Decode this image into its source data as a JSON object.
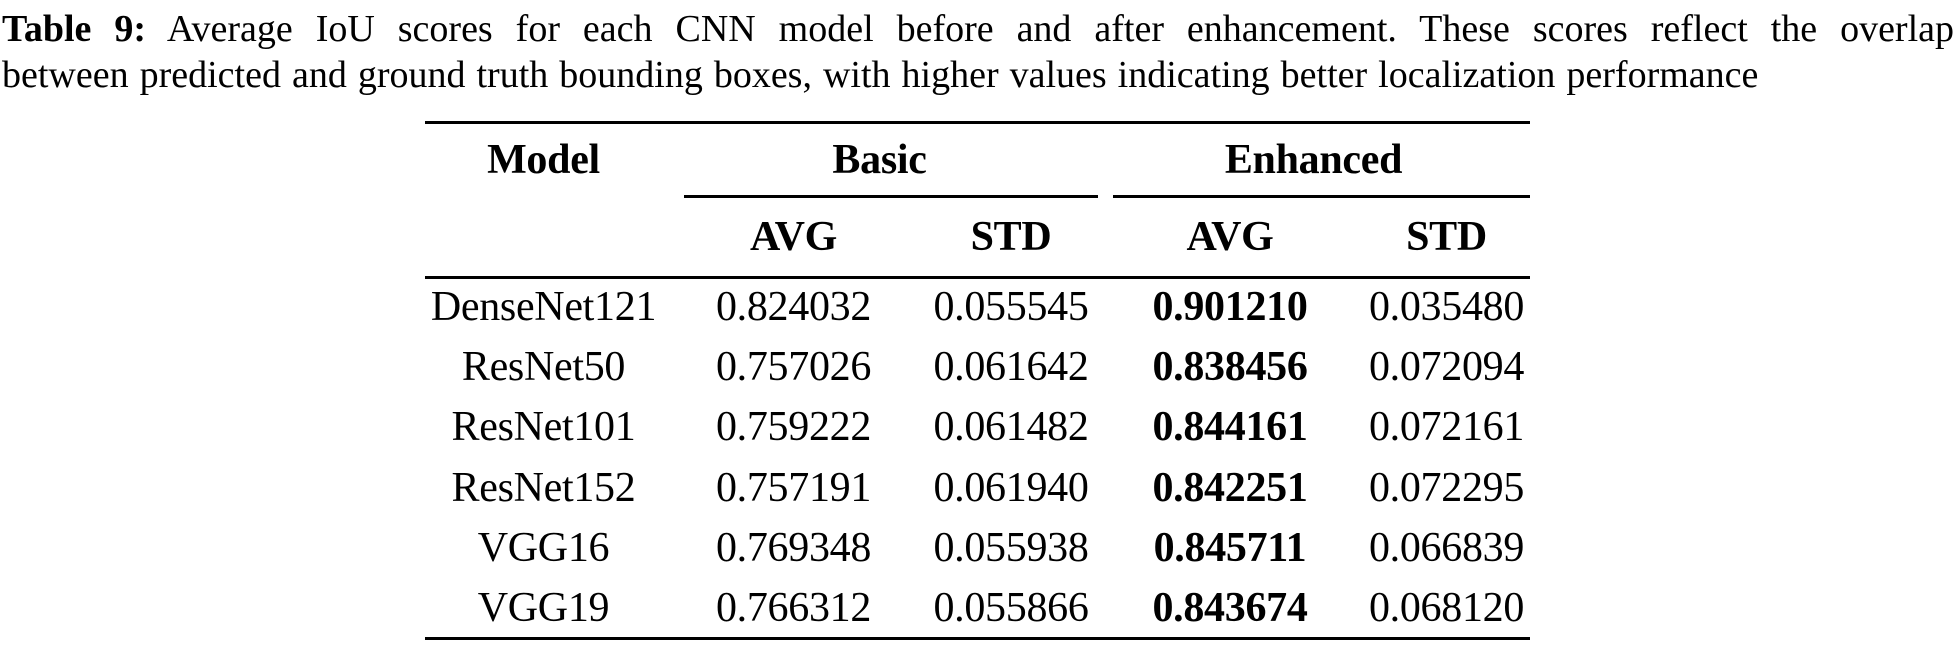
{
  "caption": {
    "label": "Table 9:",
    "text_after_label": "Average IoU scores for each CNN model before and after enhancement. These scores reflect the overlap",
    "line2": "between predicted and ground truth bounding boxes, with higher values indicating better localization performance"
  },
  "table": {
    "headers": {
      "model": "Model",
      "basic": "Basic",
      "enhanced": "Enhanced",
      "avg": "AVG",
      "std": "STD"
    },
    "rows": [
      {
        "model": "DenseNet121",
        "basic_avg": "0.824032",
        "basic_std": "0.055545",
        "enh_avg": "0.901210",
        "enh_std": "0.035480"
      },
      {
        "model": "ResNet50",
        "basic_avg": "0.757026",
        "basic_std": "0.061642",
        "enh_avg": "0.838456",
        "enh_std": "0.072094"
      },
      {
        "model": "ResNet101",
        "basic_avg": "0.759222",
        "basic_std": "0.061482",
        "enh_avg": "0.844161",
        "enh_std": "0.072161"
      },
      {
        "model": "ResNet152",
        "basic_avg": "0.757191",
        "basic_std": "0.061940",
        "enh_avg": "0.842251",
        "enh_std": "0.072295"
      },
      {
        "model": "VGG16",
        "basic_avg": "0.769348",
        "basic_std": "0.055938",
        "enh_avg": "0.845711",
        "enh_std": "0.066839"
      },
      {
        "model": "VGG19",
        "basic_avg": "0.766312",
        "basic_std": "0.055866",
        "enh_avg": "0.843674",
        "enh_std": "0.068120"
      }
    ]
  },
  "colors": {
    "text": "#000000",
    "background": "#ffffff",
    "rule": "#000000"
  }
}
